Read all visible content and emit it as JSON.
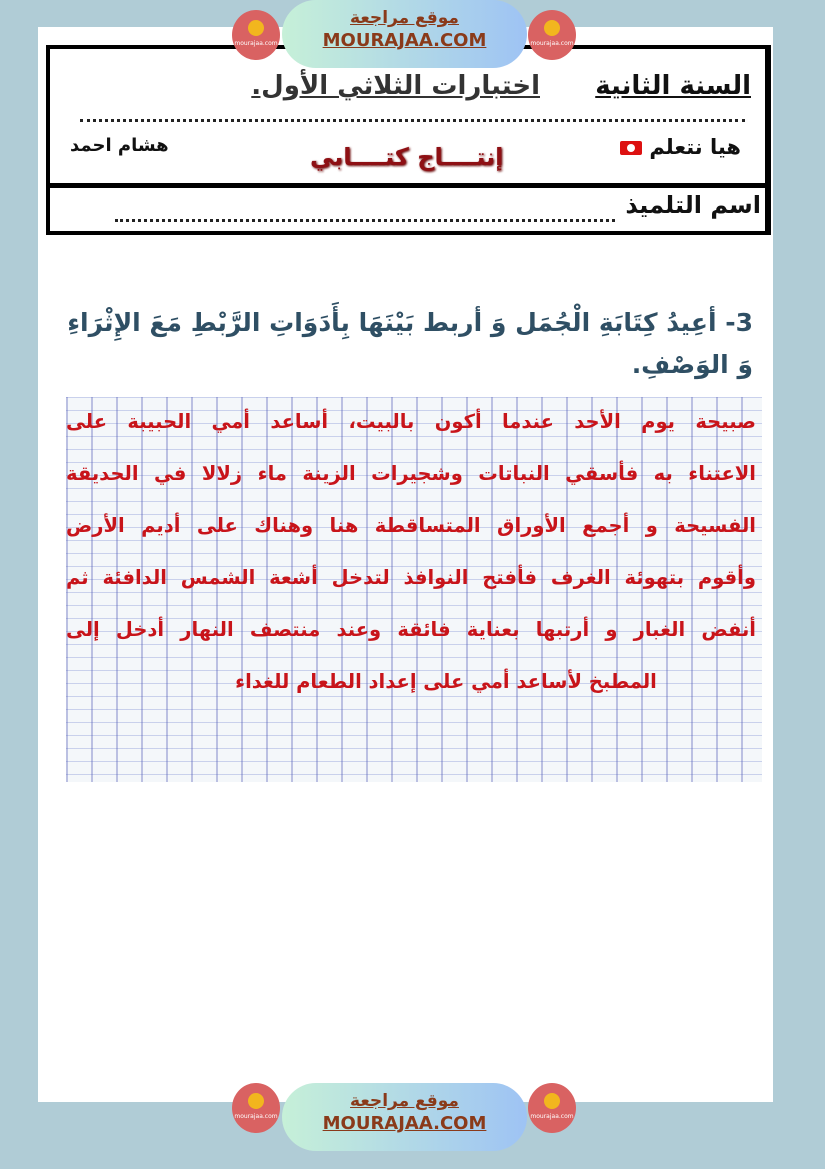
{
  "watermark": {
    "arabic": "موقع مراجعة",
    "latin": "MOURAJAA.COM",
    "logo_text": "mourajaa.com",
    "colors": {
      "banner_text": "#8a3a1a",
      "logo_bg": "#d96262"
    }
  },
  "header": {
    "grade": "السنة الثانية",
    "exam_title": "اختبارات الثلاثي الأول.",
    "brand": "هيا نتعلم",
    "author": "هشام احمد",
    "subject": "إنتــــاج كتــــابي",
    "student_name_label": "اسم التلميذ"
  },
  "question": {
    "text": "3- أعِيدُ كِتَابَةِ الْجُمَل وَ أربط بَيْنَهَا بِأَدَوَاتِ الرَّبْطِ مَعَ الإِثْرَاءِ وَ الوَصْفِ."
  },
  "answer": {
    "lines": [
      "صبيحة يوم الأحد عندما أكون بالبيت، أساعد أمي الحبيبة على",
      "الاعتناء به فأسقي النباتات وشجيرات الزينة ماء زلالا في الحديقة",
      "الفسيحة و أجمع الأوراق المتساقطة هنا وهناك على أديم الأرض",
      "وأقوم بتهوئة الغرف فأفتح النوافذ لتدخل أشعة الشمس الدافئة ثم",
      "أنفض الغبار و أرتبها بعناية فائقة وعند منتصف النهار أدخل إلى",
      "المطبخ لأساعد أمي على إعداد الطعام للغداء"
    ],
    "color": "#c8141a"
  }
}
